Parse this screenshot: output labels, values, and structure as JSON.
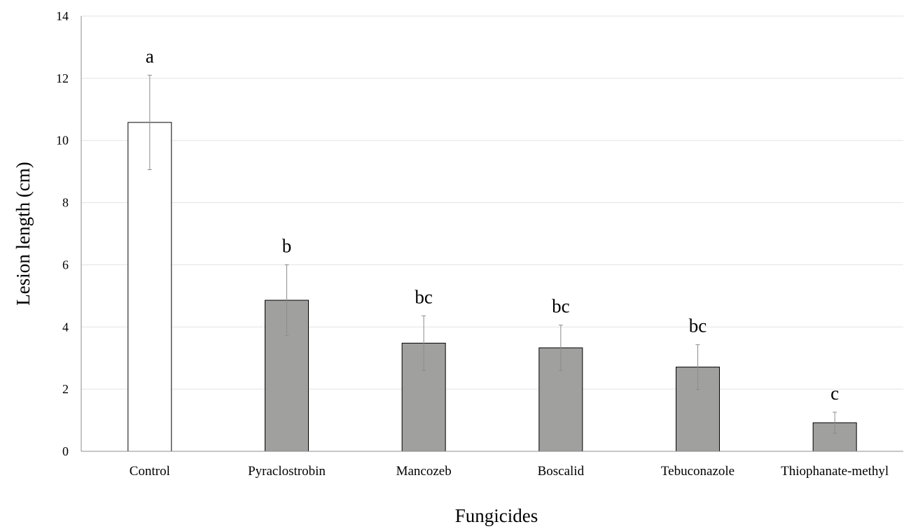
{
  "chart_data": {
    "type": "bar",
    "title": "",
    "xlabel": "Fungicides",
    "ylabel": "Lesion length (cm)",
    "ylim": [
      0,
      14
    ],
    "yticks": [
      0,
      2,
      4,
      6,
      8,
      10,
      12,
      14
    ],
    "grid": true,
    "legend": "none",
    "categories": [
      "Control",
      "Pyraclostrobin",
      "Mancozeb",
      "Boscalid",
      "Tebuconazole",
      "Thiophanate-methyl"
    ],
    "values": [
      10.58,
      4.86,
      3.48,
      3.33,
      2.71,
      0.92
    ],
    "error": [
      1.52,
      1.14,
      0.88,
      0.73,
      0.72,
      0.34
    ],
    "significance_letters": [
      "a",
      "b",
      "bc",
      "bc",
      "bc",
      "c"
    ],
    "colors": {
      "control_fill": "#ffffff",
      "treatment_fill": "#a0a09e",
      "bar_stroke": "#000000",
      "gridline": "#e3e3e3",
      "axis": "#8c8c8c",
      "error_bar": "#8c8c8c"
    }
  }
}
